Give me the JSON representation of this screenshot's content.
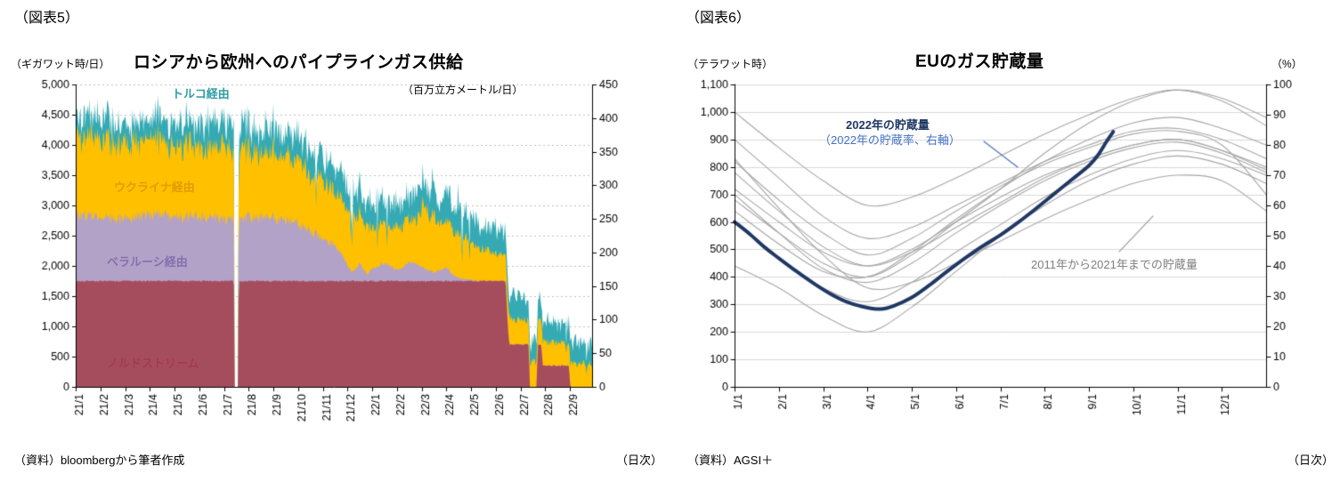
{
  "page": {
    "background": "#FFFFFF"
  },
  "panels": {
    "left": {
      "figure_label": "（図表5）",
      "source": "（資料）bloombergから筆者作成",
      "frequency_note": "（日次）"
    },
    "right": {
      "figure_label": "（図表6）",
      "source": "（資料）AGSI＋",
      "frequency_note": "（日次）"
    }
  },
  "chart_data": [
    {
      "type": "area",
      "stacked": true,
      "title": "ロシアから欧州へのパイプラインガス供給",
      "y_left": {
        "unit": "（ギガワット時/日）",
        "min": 0,
        "max": 5000,
        "step": 500
      },
      "y_right": {
        "unit": "（百万立方メートル/日）",
        "min": 0,
        "max": 450,
        "step": 50
      },
      "x": {
        "tick_labels": [
          "21/1",
          "21/2",
          "21/3",
          "21/4",
          "21/5",
          "21/6",
          "21/7",
          "21/8",
          "21/9",
          "21/10",
          "21/11",
          "21/12",
          "22/1",
          "22/2",
          "22/3",
          "22/4",
          "22/5",
          "22/6",
          "22/7",
          "22/8",
          "22/9"
        ],
        "months_total": 20.9
      },
      "grid_color": "#BFBFBF",
      "series": [
        {
          "name": "ノルドストリーム",
          "color": "#A64D5D",
          "label_color": "#A23B50",
          "anchors": [
            [
              0,
              1750
            ],
            [
              6.4,
              1750
            ],
            [
              6.42,
              0
            ],
            [
              6.58,
              0
            ],
            [
              6.6,
              1750
            ],
            [
              17.4,
              1750
            ],
            [
              17.48,
              1050
            ],
            [
              17.55,
              700
            ],
            [
              18.33,
              700
            ],
            [
              18.38,
              0
            ],
            [
              18.66,
              0
            ],
            [
              18.7,
              700
            ],
            [
              18.84,
              700
            ],
            [
              18.9,
              350
            ],
            [
              19.96,
              350
            ],
            [
              20.02,
              0
            ],
            [
              20.9,
              0
            ]
          ]
        },
        {
          "name": "ベラルーシ経由",
          "color": "#B3A2C7",
          "label_color": "#8470AD",
          "anchors": [
            [
              0,
              1100
            ],
            [
              1,
              1080
            ],
            [
              2,
              1000
            ],
            [
              3,
              1100
            ],
            [
              4,
              1050
            ],
            [
              5,
              1100
            ],
            [
              6,
              1020
            ],
            [
              6.4,
              1000
            ],
            [
              6.42,
              0
            ],
            [
              6.58,
              0
            ],
            [
              6.6,
              1000
            ],
            [
              7,
              1050
            ],
            [
              8,
              1050
            ],
            [
              9,
              950
            ],
            [
              9.5,
              820
            ],
            [
              10,
              700
            ],
            [
              10.5,
              600
            ],
            [
              10.8,
              420
            ],
            [
              11,
              260
            ],
            [
              11.2,
              130
            ],
            [
              11.5,
              300
            ],
            [
              11.8,
              110
            ],
            [
              12,
              200
            ],
            [
              12.5,
              300
            ],
            [
              13,
              180
            ],
            [
              13.5,
              320
            ],
            [
              14,
              240
            ],
            [
              14.5,
              140
            ],
            [
              15,
              230
            ],
            [
              15.3,
              90
            ],
            [
              15.6,
              40
            ],
            [
              16,
              20
            ],
            [
              16.5,
              0
            ],
            [
              20.9,
              0
            ]
          ]
        },
        {
          "name": "ウクライナ経由",
          "color": "#FFC000",
          "label_color": "#E39B00",
          "anchors": [
            [
              0,
              1300
            ],
            [
              1,
              1300
            ],
            [
              2,
              1250
            ],
            [
              3,
              1250
            ],
            [
              4,
              1200
            ],
            [
              5,
              1150
            ],
            [
              6,
              1200
            ],
            [
              6.4,
              1150
            ],
            [
              6.42,
              0
            ],
            [
              6.58,
              0
            ],
            [
              6.6,
              1150
            ],
            [
              7,
              1100
            ],
            [
              8,
              1100
            ],
            [
              9,
              1050
            ],
            [
              9.5,
              950
            ],
            [
              10,
              950
            ],
            [
              10.5,
              900
            ],
            [
              11,
              900
            ],
            [
              11.5,
              850
            ],
            [
              12,
              700
            ],
            [
              12.5,
              650
            ],
            [
              13,
              680
            ],
            [
              13.8,
              700
            ],
            [
              14,
              1000
            ],
            [
              14.3,
              950
            ],
            [
              15,
              780
            ],
            [
              15.5,
              720
            ],
            [
              16,
              650
            ],
            [
              16.5,
              520
            ],
            [
              17,
              440
            ],
            [
              17.5,
              420
            ],
            [
              18,
              410
            ],
            [
              18.5,
              400
            ],
            [
              19,
              400
            ],
            [
              19.5,
              390
            ],
            [
              20,
              380
            ],
            [
              20.9,
              380
            ]
          ]
        },
        {
          "name": "トルコ経由",
          "color": "#35AAB4",
          "label_color": "#2E9EA8",
          "anchors": [
            [
              0,
              320
            ],
            [
              1,
              340
            ],
            [
              2,
              300
            ],
            [
              3,
              350
            ],
            [
              4,
              350
            ],
            [
              5,
              380
            ],
            [
              6,
              400
            ],
            [
              6.4,
              400
            ],
            [
              6.42,
              0
            ],
            [
              6.58,
              0
            ],
            [
              6.6,
              400
            ],
            [
              7,
              400
            ],
            [
              8,
              420
            ],
            [
              9,
              400
            ],
            [
              10,
              400
            ],
            [
              11,
              420
            ],
            [
              12,
              400
            ],
            [
              13,
              420
            ],
            [
              14,
              400
            ],
            [
              15,
              420
            ],
            [
              16,
              430
            ],
            [
              17,
              400
            ],
            [
              18,
              360
            ],
            [
              18.5,
              330
            ],
            [
              19,
              320
            ],
            [
              19.5,
              340
            ],
            [
              20,
              350
            ],
            [
              20.9,
              350
            ]
          ]
        }
      ]
    },
    {
      "type": "line",
      "title": "EUのガス貯蔵量",
      "y_left": {
        "unit": "（テラワット時）",
        "min": 0,
        "max": 1100,
        "step": 100
      },
      "y_right": {
        "unit": "（%）",
        "min": 0,
        "max": 100,
        "step": 10
      },
      "x": {
        "tick_labels": [
          "1/1",
          "2/1",
          "3/1",
          "4/1",
          "5/1",
          "6/1",
          "7/1",
          "8/1",
          "9/1",
          "10/1",
          "11/1",
          "12/1"
        ],
        "months_total": 12
      },
      "grid_color": "#D9D9D9",
      "series_2022": {
        "label_line1": "2022年の貯蔵量",
        "label_line2": "（2022年の貯蔵率、右軸）",
        "color": "#1F3864",
        "label2_color": "#4472C4",
        "points": [
          [
            0,
            600
          ],
          [
            0.35,
            555
          ],
          [
            0.7,
            505
          ],
          [
            1,
            468
          ],
          [
            1.4,
            420
          ],
          [
            1.8,
            375
          ],
          [
            2.2,
            335
          ],
          [
            2.6,
            305
          ],
          [
            3,
            288
          ],
          [
            3.3,
            283
          ],
          [
            3.6,
            295
          ],
          [
            4,
            325
          ],
          [
            4.4,
            370
          ],
          [
            4.8,
            420
          ],
          [
            5.2,
            468
          ],
          [
            5.6,
            512
          ],
          [
            6,
            552
          ],
          [
            6.4,
            598
          ],
          [
            6.8,
            648
          ],
          [
            7.2,
            700
          ],
          [
            7.6,
            752
          ],
          [
            8,
            805
          ],
          [
            8.2,
            842
          ],
          [
            8.4,
            893
          ],
          [
            8.55,
            928
          ]
        ]
      },
      "series_past": {
        "label": "2011年から2021年までの貯蔵量",
        "color": "#A6A6A6",
        "label_color": "#7F7F7F",
        "lines": [
          [
            720,
            600,
            490,
            440,
            500,
            600,
            690,
            770,
            830,
            880,
            900,
            860,
            790
          ],
          [
            820,
            680,
            560,
            480,
            540,
            640,
            730,
            810,
            870,
            920,
            930,
            880,
            700
          ],
          [
            700,
            560,
            430,
            380,
            450,
            560,
            660,
            750,
            820,
            870,
            890,
            850,
            780
          ],
          [
            640,
            520,
            420,
            400,
            490,
            610,
            720,
            820,
            900,
            960,
            980,
            940,
            880
          ],
          [
            780,
            640,
            510,
            440,
            490,
            580,
            670,
            760,
            830,
            880,
            900,
            860,
            800
          ],
          [
            900,
            760,
            620,
            540,
            580,
            660,
            740,
            820,
            880,
            930,
            940,
            900,
            830
          ],
          [
            600,
            470,
            360,
            310,
            380,
            490,
            590,
            690,
            770,
            830,
            860,
            830,
            770
          ],
          [
            440,
            360,
            260,
            200,
            290,
            420,
            550,
            660,
            750,
            810,
            840,
            810,
            740
          ],
          [
            680,
            560,
            450,
            400,
            480,
            600,
            720,
            850,
            960,
            1040,
            1080,
            1050,
            980
          ],
          [
            1000,
            870,
            750,
            660,
            690,
            760,
            840,
            920,
            990,
            1050,
            1080,
            1040,
            950
          ],
          [
            830,
            650,
            480,
            360,
            380,
            450,
            530,
            610,
            680,
            740,
            770,
            750,
            640
          ]
        ]
      }
    }
  ]
}
